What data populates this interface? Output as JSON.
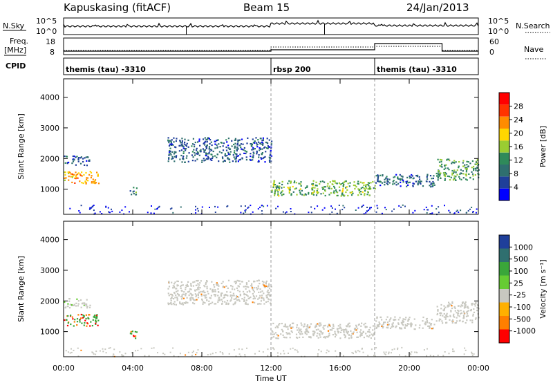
{
  "header": {
    "station": "Kapuskasing (fitACF)",
    "beam": "Beam 15",
    "date": "24/Jan/2013"
  },
  "noise_panel": {
    "left_label": "N.Sky",
    "left_ticks": [
      "10^5",
      "10^0"
    ],
    "right_label": "N.Search",
    "right_ticks": [
      "10^5",
      "10^0"
    ]
  },
  "freq_panel": {
    "left_label_1": "Freq.",
    "left_label_2": "[MHz]",
    "left_ticks": [
      "18",
      "8"
    ],
    "right_label": "Nave",
    "right_ticks": [
      "60",
      "0"
    ]
  },
  "cpid_panel": {
    "label": "CPID",
    "segments": [
      {
        "text": "themis (tau) -3310",
        "start_hour": 0,
        "end_hour": 12
      },
      {
        "text": "rbsp 200",
        "start_hour": 12,
        "end_hour": 18
      },
      {
        "text": "themis (tau) -3310",
        "start_hour": 18,
        "end_hour": 24
      }
    ]
  },
  "x_axis": {
    "label": "Time UT",
    "tick_labels": [
      "00:00",
      "04:00",
      "08:00",
      "12:00",
      "16:00",
      "20:00",
      "00:00"
    ]
  },
  "power_panel": {
    "ylabel": "Slant Range [km]",
    "yticks": [
      "1000",
      "2000",
      "3000",
      "4000"
    ],
    "colorbar_label": "Power [dB]",
    "colorbar_ticks": [
      "4",
      "8",
      "12",
      "16",
      "20",
      "24",
      "28"
    ],
    "colors": [
      "#0000ff",
      "#1f3f9a",
      "#2f6f6f",
      "#2f8a5a",
      "#9acd32",
      "#ffd700",
      "#ff8c00",
      "#ff3300",
      "#ff0000"
    ]
  },
  "velocity_panel": {
    "ylabel": "Slant Range [km]",
    "yticks": [
      "1000",
      "2000",
      "3000",
      "4000"
    ],
    "colorbar_label": "Velocity [m s⁻¹]",
    "colorbar_ticks": [
      "1000",
      "500",
      "100",
      "25",
      "-25",
      "-100",
      "-500",
      "-1000"
    ],
    "colors": [
      "#1f3f9a",
      "#2f6f6f",
      "#3aa63a",
      "#66cc33",
      "#c8c8c0",
      "#ffb000",
      "#ff7f00",
      "#ff0000"
    ]
  },
  "chart_data": {
    "type": "heatmap",
    "title": "Kapuskasing (fitACF) Beam 15 24/Jan/2013",
    "xlabel": "Time UT",
    "ylabel": "Slant Range [km]",
    "xlim_hours": [
      0,
      24
    ],
    "ylim_km": [
      180,
      4600
    ],
    "echo_regions": [
      {
        "t0": 0.0,
        "t1": 1.5,
        "r0": 1800,
        "r1": 2100,
        "power_db": 10,
        "velocity": 25
      },
      {
        "t0": 0.0,
        "t1": 2.0,
        "r0": 1200,
        "r1": 1600,
        "power_db": 26,
        "velocity": 200
      },
      {
        "t0": 3.8,
        "t1": 4.2,
        "r0": 800,
        "r1": 1100,
        "power_db": 14,
        "velocity": 100
      },
      {
        "t0": 6.0,
        "t1": 12.0,
        "r0": 1900,
        "r1": 2700,
        "power_db": 10,
        "velocity": 0
      },
      {
        "t0": 12.0,
        "t1": 18.0,
        "r0": 800,
        "r1": 1300,
        "power_db": 18,
        "velocity": 0
      },
      {
        "t0": 18.0,
        "t1": 21.5,
        "r0": 1100,
        "r1": 1500,
        "power_db": 10,
        "velocity": 0
      },
      {
        "t0": 21.5,
        "t1": 24.0,
        "r0": 1300,
        "r1": 2000,
        "power_db": 16,
        "velocity": 0
      }
    ]
  }
}
